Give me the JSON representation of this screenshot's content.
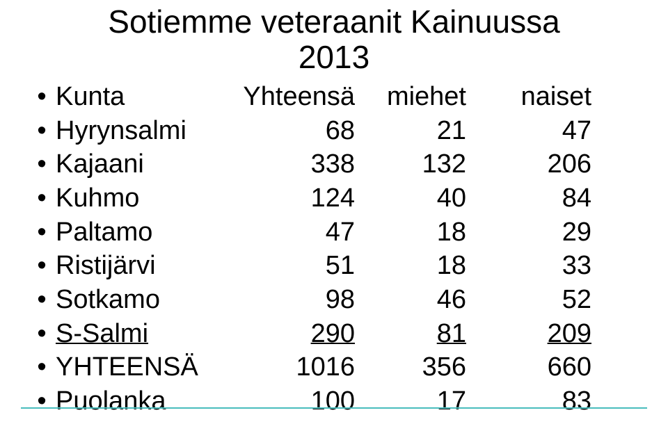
{
  "title_line1": "Sotiemme veteraanit Kainuussa",
  "title_line2": "2013",
  "header": {
    "label": "Kunta",
    "c1": "Yhteensä",
    "c2": "miehet",
    "c3": "naiset"
  },
  "rows": [
    {
      "label": "Hyrynsalmi",
      "c1": "68",
      "c2": "21",
      "c3": "47",
      "underline": false
    },
    {
      "label": "Kajaani",
      "c1": "338",
      "c2": "132",
      "c3": "206",
      "underline": false
    },
    {
      "label": "Kuhmo",
      "c1": "124",
      "c2": "40",
      "c3": "84",
      "underline": false
    },
    {
      "label": "Paltamo",
      "c1": "47",
      "c2": "18",
      "c3": "29",
      "underline": false
    },
    {
      "label": "Ristijärvi",
      "c1": "51",
      "c2": "18",
      "c3": "33",
      "underline": false
    },
    {
      "label": "Sotkamo",
      "c1": "98",
      "c2": "46",
      "c3": "52",
      "underline": false
    },
    {
      "label": "S-Salmi",
      "c1": "290",
      "c2": "81",
      "c3": "209",
      "underline": true
    },
    {
      "label": "YHTEENSÄ",
      "c1": "1016",
      "c2": "356",
      "c3": "660",
      "underline": false
    },
    {
      "label": "Puolanka",
      "c1": "100",
      "c2": "17",
      "c3": "83",
      "underline": false
    }
  ],
  "colors": {
    "text": "#000000",
    "background": "#ffffff",
    "rule": "#49bdbd"
  }
}
